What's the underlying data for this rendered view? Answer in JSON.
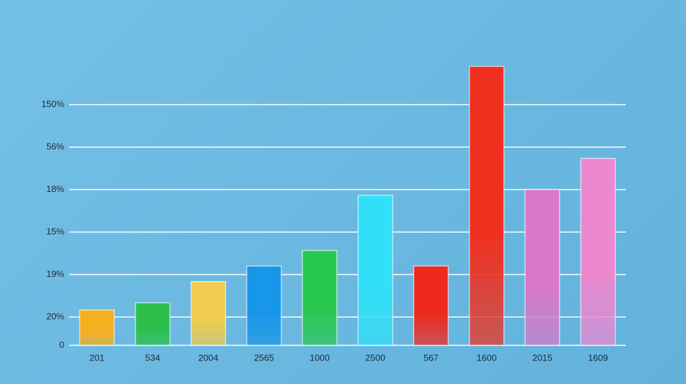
{
  "chart_data": {
    "type": "bar",
    "categories": [
      "201",
      "534",
      "2004",
      "2565",
      "1000",
      "2500",
      "567",
      "1600",
      "2015",
      "1609"
    ],
    "values": [
      25,
      30,
      45,
      56,
      67,
      106,
      56,
      197,
      110,
      132
    ],
    "colors": [
      "#f5b020",
      "#2cc04a",
      "#f0cc50",
      "#1896e8",
      "#28c850",
      "#30e0f8",
      "#ee2a1e",
      "#f0301e",
      "#d878c8",
      "#ec88d0"
    ],
    "ylim": [
      0,
      200
    ],
    "yticks": [
      0,
      {
        "value": 20,
        "label": "20%"
      },
      {
        "value": 50,
        "label": "19%"
      },
      {
        "value": 80,
        "label": "15%"
      },
      {
        "value": 110,
        "label": "18%"
      },
      {
        "value": 140,
        "label": "56%"
      },
      {
        "value": 170,
        "label": "150%"
      }
    ],
    "grid": true
  }
}
